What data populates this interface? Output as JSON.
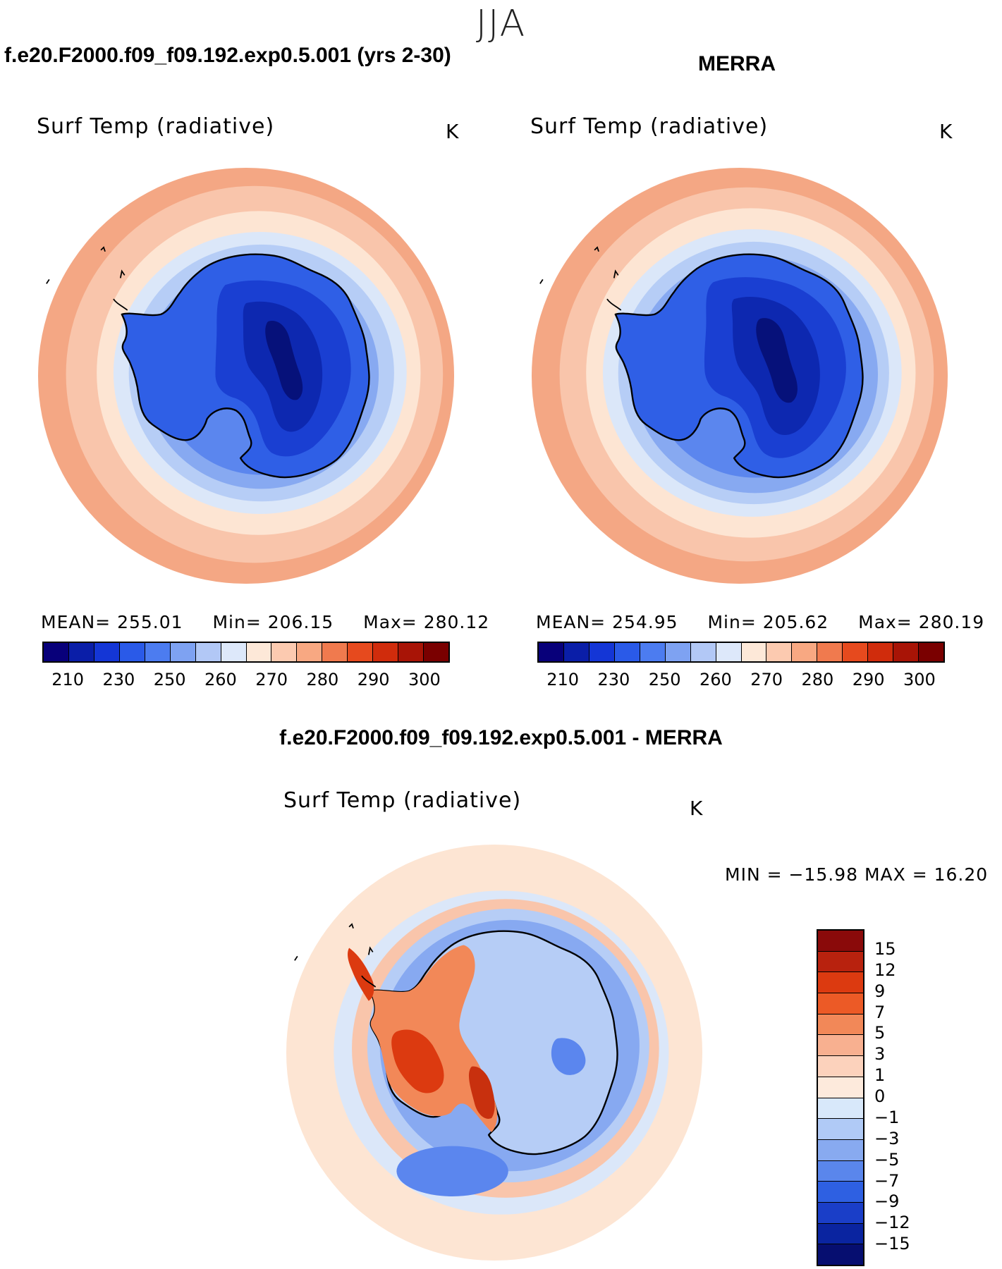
{
  "season": "JJA",
  "panels": {
    "left": {
      "case_title": "f.e20.F2000.f09_f09.192.exp0.5.001 (yrs 2-30)",
      "variable": "Surf Temp (radiative)",
      "units": "K",
      "mean_label": "MEAN=",
      "mean": "255.01",
      "min_label": "Min=",
      "min": "206.15",
      "max_label": "Max=",
      "max": "280.12"
    },
    "right": {
      "case_title": "MERRA",
      "variable": "Surf Temp (radiative)",
      "units": "K",
      "mean_label": "MEAN=",
      "mean": "254.95",
      "min_label": "Min=",
      "min": "205.62",
      "max_label": "Max=",
      "max": "280.19"
    },
    "diff": {
      "case_title": "f.e20.F2000.f09_f09.192.exp0.5.001 - MERRA",
      "variable": "Surf Temp (radiative)",
      "units": "K",
      "minmax_text": "MIN = −15.98 MAX =   16.20"
    }
  },
  "abs_colorbar": {
    "ticks": [
      "210",
      "230",
      "250",
      "260",
      "270",
      "280",
      "290",
      "300"
    ],
    "colors": [
      "#08007a",
      "#0a1ea8",
      "#1436d6",
      "#2a5ae8",
      "#4c7cf0",
      "#7ea2f2",
      "#b2c8f6",
      "#dde8fa",
      "#fde8d8",
      "#fccab0",
      "#f8a882",
      "#f07a4e",
      "#e64a1e",
      "#d02c0c",
      "#a81406",
      "#7a0000"
    ]
  },
  "diff_colorbar": {
    "ticks": [
      "15",
      "12",
      "9",
      "7",
      "5",
      "3",
      "1",
      "0",
      "−1",
      "−3",
      "−5",
      "−7",
      "−9",
      "−12",
      "−15"
    ],
    "colors": [
      "#8a0a0a",
      "#b8220e",
      "#dc3a10",
      "#ec5a26",
      "#f28858",
      "#f8b090",
      "#fcd2bc",
      "#fdeadc",
      "#d8e8fa",
      "#b0caf6",
      "#88aaf0",
      "#5a86ec",
      "#2e60e2",
      "#1a3ec8",
      "#0a24a0",
      "#060e70"
    ]
  },
  "map_colors": {
    "ocean_warm": "#f4a784",
    "ocean_mid": "#f9c5ab",
    "ocean_pale": "#fde5d3",
    "ice_pale": "#dbe7f9",
    "ice_light": "#b6cdf6",
    "ice_mid": "#87a9f1",
    "ice_blue": "#5b86ee",
    "land_blue": "#2f5fe6",
    "land_deep": "#1a3fd2",
    "land_deeper": "#0d28b0",
    "pole_core": "#06117a",
    "diff_red": "#ec5a26",
    "diff_orange": "#f28858",
    "diff_dark_red": "#c8300e"
  }
}
